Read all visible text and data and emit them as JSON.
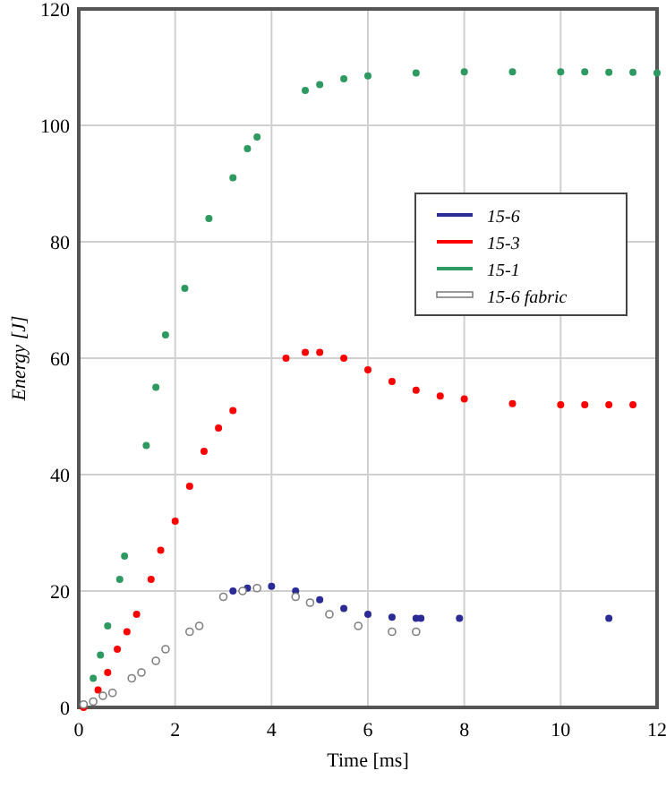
{
  "chart_data": {
    "type": "scatter",
    "xlabel": "Time [ms]",
    "ylabel": "Energy [J]",
    "xlim": [
      0,
      12
    ],
    "xticks": [
      0,
      2,
      4,
      6,
      8,
      10,
      12
    ],
    "ylim": [
      0,
      120
    ],
    "yticks": [
      0,
      20,
      40,
      60,
      80,
      100,
      120
    ],
    "grid": true,
    "legend": "right",
    "marker": "circle",
    "series": [
      {
        "name": "15-6",
        "color": "#2b2b96",
        "x": [
          3.2,
          3.5,
          4.0,
          4.5,
          5.0,
          5.5,
          6.0,
          6.5,
          7.0,
          7.1,
          7.9,
          11.0
        ],
        "values": [
          20,
          20.5,
          20.8,
          20,
          18.5,
          17,
          16,
          15.5,
          15.3,
          15.3,
          15.3,
          15.3
        ]
      },
      {
        "name": "15-3",
        "color": "#ff0000",
        "x": [
          0.1,
          0.4,
          0.6,
          0.8,
          1.0,
          1.2,
          1.5,
          1.7,
          2.0,
          2.3,
          2.6,
          2.9,
          3.2,
          4.3,
          4.7,
          5.0,
          5.5,
          6.0,
          6.5,
          7.0,
          7.5,
          8.0,
          9.0,
          10.0,
          10.5,
          11.0,
          11.5
        ],
        "values": [
          0,
          3,
          6,
          10,
          13,
          16,
          22,
          27,
          32,
          38,
          44,
          48,
          51,
          60,
          61,
          61,
          60,
          58,
          56,
          54.5,
          53.5,
          53,
          52.2,
          52,
          52,
          52,
          52
        ]
      },
      {
        "name": "15-1",
        "color": "#2e9960",
        "x": [
          0.3,
          0.45,
          0.6,
          0.85,
          0.95,
          1.4,
          1.6,
          1.8,
          2.2,
          2.7,
          3.2,
          3.5,
          3.7,
          4.7,
          5.0,
          5.5,
          6.0,
          7.0,
          8.0,
          9.0,
          10.0,
          10.5,
          11.0,
          11.5,
          12.0
        ],
        "values": [
          5,
          9,
          14,
          22,
          26,
          45,
          55,
          64,
          72,
          84,
          91,
          96,
          98,
          106,
          107,
          108,
          108.5,
          109,
          109.2,
          109.2,
          109.2,
          109.2,
          109.1,
          109.1,
          109
        ]
      },
      {
        "name": "15-6 fabric",
        "color": "#808080",
        "x": [
          0.1,
          0.3,
          0.5,
          0.7,
          1.1,
          1.3,
          1.6,
          1.8,
          2.3,
          2.5,
          3.0,
          3.4,
          3.7,
          4.5,
          4.8,
          5.2,
          5.8,
          6.5,
          7.0
        ],
        "values": [
          0.5,
          1,
          2,
          2.5,
          5,
          6,
          8,
          10,
          13,
          14,
          19,
          20,
          20.5,
          19,
          18,
          16,
          14,
          13,
          13
        ]
      }
    ]
  }
}
